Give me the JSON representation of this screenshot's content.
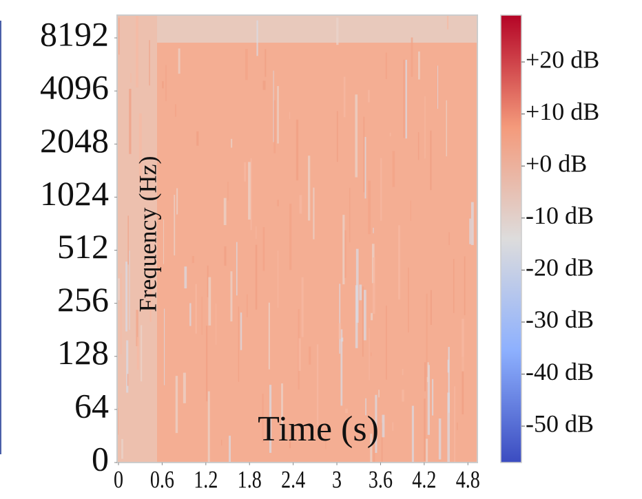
{
  "chart_data": {
    "type": "spectrogram",
    "xlabel": "Time (s)",
    "ylabel": "Frequency (Hz)",
    "xlim": [
      0,
      4.93
    ],
    "xticks": [
      0,
      0.6,
      1.2,
      1.8,
      2.4,
      3,
      3.6,
      4.2,
      4.8
    ],
    "ylim": [
      0,
      11025
    ],
    "yscale": "symlog",
    "linthresh": 64,
    "yticks": [
      0,
      64,
      128,
      256,
      512,
      1024,
      2048,
      4096,
      8192
    ],
    "colormap": "coolwarm",
    "clim": [
      -57,
      29
    ],
    "cticks": [
      {
        "value": 20,
        "label": "+20 dB"
      },
      {
        "value": 10,
        "label": "+10 dB"
      },
      {
        "value": 0,
        "label": "+0 dB"
      },
      {
        "value": -10,
        "label": "-10 dB"
      },
      {
        "value": -20,
        "label": "-20 dB"
      },
      {
        "value": -30,
        "label": "-30 dB"
      },
      {
        "value": -40,
        "label": "-40 dB"
      },
      {
        "value": -50,
        "label": "-50 dB"
      }
    ]
  }
}
